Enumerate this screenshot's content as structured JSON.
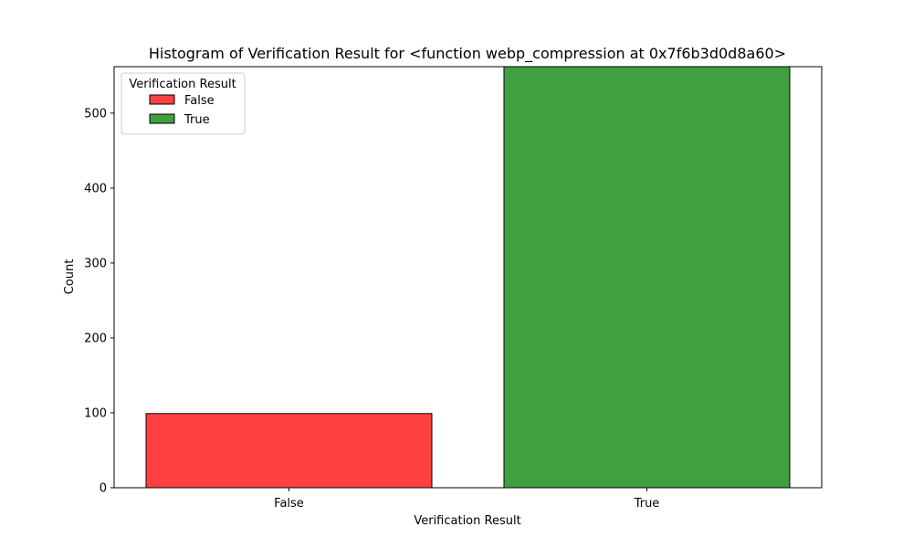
{
  "chart_data": {
    "type": "bar",
    "title": "Histogram of Verification Result for <function webp_compression at 0x7f6b3d0d8a60>",
    "xlabel": "Verification Result",
    "ylabel": "Count",
    "categories": [
      "False",
      "True"
    ],
    "values": [
      99,
      562
    ],
    "colors": [
      "#ff4040",
      "#40a040"
    ],
    "ylim": [
      0,
      562
    ],
    "yticks": [
      0,
      100,
      200,
      300,
      400,
      500
    ],
    "grid": false,
    "legend": {
      "title": "Verification Result",
      "placement": "top-left",
      "entries": [
        {
          "label": "False",
          "color": "#ff4040"
        },
        {
          "label": "True",
          "color": "#40a040"
        }
      ]
    }
  }
}
